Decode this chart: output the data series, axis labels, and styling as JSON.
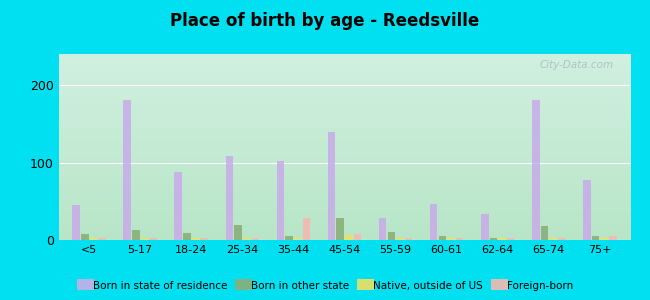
{
  "title": "Place of birth by age - Reedsville",
  "categories": [
    "<5",
    "5-17",
    "18-24",
    "25-34",
    "35-44",
    "45-54",
    "55-59",
    "60-61",
    "62-64",
    "65-74",
    "75+"
  ],
  "series": {
    "Born in state of residence": [
      45,
      180,
      88,
      108,
      102,
      140,
      28,
      47,
      33,
      180,
      77
    ],
    "Born in other state": [
      8,
      13,
      9,
      20,
      5,
      28,
      10,
      5,
      3,
      18,
      5
    ],
    "Native, outside of US": [
      3,
      3,
      3,
      3,
      3,
      7,
      3,
      3,
      3,
      3,
      3
    ],
    "Foreign-born": [
      3,
      3,
      3,
      3,
      28,
      8,
      3,
      3,
      3,
      3,
      5
    ]
  },
  "colors": {
    "Born in state of residence": "#c8aee8",
    "Born in other state": "#8aaf78",
    "Native, outside of US": "#f0e060",
    "Foreign-born": "#f5b8b0"
  },
  "ylim": [
    0,
    240
  ],
  "yticks": [
    0,
    100,
    200
  ],
  "bg_color_top": "#d8f0e8",
  "bg_color_bottom": "#c8edd8",
  "outer_bg": "#00e0f0",
  "watermark": "City-Data.com"
}
